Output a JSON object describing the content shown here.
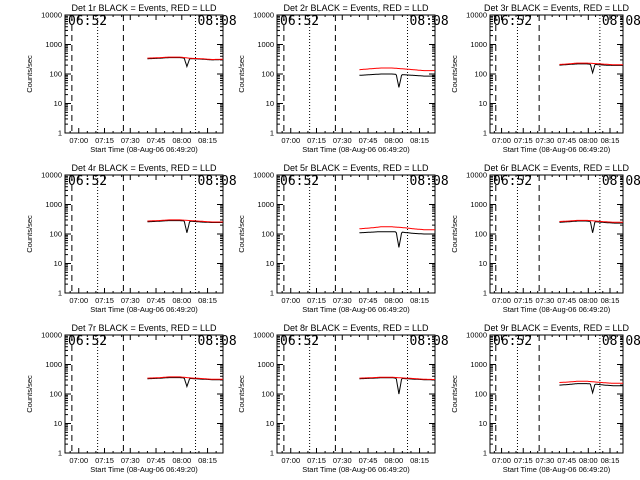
{
  "figure": {
    "background": "#ffffff",
    "axis_color": "#000000"
  },
  "chart_data": [
    {
      "type": "line",
      "title": "Det 1r BLACK = Events, RED = LLD",
      "xlabel": "Start Time (08-Aug-06 06:49:20)",
      "ylabel": "Counts/sec",
      "yscale": "log",
      "ylim": [
        1,
        10000
      ],
      "xlim": [
        "06:52",
        "08:24"
      ],
      "x_ticks": [
        "07:00",
        "07:15",
        "07:30",
        "07:45",
        "08:00",
        "08:15"
      ],
      "y_ticks": [
        "1",
        "10",
        "100",
        "1000",
        "10000"
      ],
      "markers": {
        "S": "06:52",
        "E": "08:08"
      },
      "dashed_lines": [
        "06:56",
        "07:26"
      ],
      "dotted_lines": [
        "07:11",
        "08:08"
      ],
      "data_start": "07:40",
      "data_end": "08:24",
      "series": [
        {
          "color": "#000000",
          "values": [
            330,
            340,
            360,
            360,
            330,
            320,
            300,
            310
          ]
        },
        {
          "color": "#ff0000",
          "values": [
            345,
            355,
            375,
            375,
            340,
            330,
            310,
            315
          ]
        }
      ],
      "dip": {
        "x": "08:03",
        "value": 180
      }
    },
    {
      "type": "line",
      "title": "Det 2r BLACK = Events, RED = LLD",
      "xlabel": "Start Time (08-Aug-06 06:49:20)",
      "ylabel": "Counts/sec",
      "yscale": "log",
      "ylim": [
        1,
        10000
      ],
      "xlim": [
        "06:52",
        "08:24"
      ],
      "x_ticks": [
        "07:00",
        "07:15",
        "07:30",
        "07:45",
        "08:00",
        "08:15"
      ],
      "y_ticks": [
        "1",
        "10",
        "100",
        "1000",
        "10000"
      ],
      "markers": {
        "S": "06:52",
        "E": "08:08"
      },
      "dashed_lines": [
        "06:56",
        "07:26"
      ],
      "dotted_lines": [
        "07:11",
        "08:08"
      ],
      "data_start": "07:40",
      "data_end": "08:24",
      "series": [
        {
          "color": "#000000",
          "values": [
            90,
            95,
            100,
            100,
            95,
            90,
            85,
            85
          ]
        },
        {
          "color": "#ff0000",
          "values": [
            140,
            150,
            160,
            160,
            150,
            140,
            130,
            130
          ]
        }
      ],
      "dip": {
        "x": "08:03",
        "value": 35
      }
    },
    {
      "type": "line",
      "title": "Det 3r BLACK = Events, RED = LLD",
      "xlabel": "Start Time (08-Aug-06 06:49:20)",
      "ylabel": "Counts/sec",
      "yscale": "log",
      "ylim": [
        1,
        10000
      ],
      "xlim": [
        "06:52",
        "08:24"
      ],
      "x_ticks": [
        "07:00",
        "07:15",
        "07:30",
        "07:45",
        "08:00",
        "08:15"
      ],
      "y_ticks": [
        "1",
        "10",
        "100",
        "1000",
        "10000"
      ],
      "markers": {
        "S": "06:52",
        "E": "08:08"
      },
      "dashed_lines": [
        "06:56",
        "07:26"
      ],
      "dotted_lines": [
        "07:11",
        "08:08"
      ],
      "data_start": "07:40",
      "data_end": "08:24",
      "series": [
        {
          "color": "#000000",
          "values": [
            200,
            210,
            220,
            220,
            210,
            200,
            195,
            195
          ]
        },
        {
          "color": "#ff0000",
          "values": [
            210,
            220,
            235,
            235,
            225,
            215,
            205,
            205
          ]
        }
      ],
      "dip": {
        "x": "08:03",
        "value": 110
      }
    },
    {
      "type": "line",
      "title": "Det 4r BLACK = Events, RED = LLD",
      "xlabel": "Start Time (08-Aug-06 06:49:20)",
      "ylabel": "Counts/sec",
      "yscale": "log",
      "ylim": [
        1,
        10000
      ],
      "xlim": [
        "06:52",
        "08:24"
      ],
      "x_ticks": [
        "07:00",
        "07:15",
        "07:30",
        "07:45",
        "08:00",
        "08:15"
      ],
      "y_ticks": [
        "1",
        "10",
        "100",
        "1000",
        "10000"
      ],
      "markers": {
        "S": "06:52",
        "E": "08:08"
      },
      "dashed_lines": [
        "06:56",
        "07:26"
      ],
      "dotted_lines": [
        "07:11",
        "08:08"
      ],
      "data_start": "07:40",
      "data_end": "08:24",
      "series": [
        {
          "color": "#000000",
          "values": [
            260,
            270,
            285,
            285,
            270,
            255,
            245,
            245
          ]
        },
        {
          "color": "#ff0000",
          "values": [
            275,
            285,
            300,
            300,
            285,
            270,
            255,
            255
          ]
        }
      ],
      "dip": {
        "x": "08:03",
        "value": 110
      }
    },
    {
      "type": "line",
      "title": "Det 5r BLACK = Events, RED = LLD",
      "xlabel": "Start Time (08-Aug-06 06:49:20)",
      "ylabel": "Counts/sec",
      "yscale": "log",
      "ylim": [
        1,
        10000
      ],
      "xlim": [
        "06:52",
        "08:24"
      ],
      "x_ticks": [
        "07:00",
        "07:15",
        "07:30",
        "07:45",
        "08:00",
        "08:15"
      ],
      "y_ticks": [
        "1",
        "10",
        "100",
        "1000",
        "10000"
      ],
      "markers": {
        "S": "06:52",
        "E": "08:08"
      },
      "dashed_lines": [
        "06:56",
        "07:26"
      ],
      "dotted_lines": [
        "07:11",
        "08:08"
      ],
      "data_start": "07:40",
      "data_end": "08:24",
      "series": [
        {
          "color": "#000000",
          "values": [
            110,
            115,
            120,
            120,
            115,
            105,
            100,
            100
          ]
        },
        {
          "color": "#ff0000",
          "values": [
            150,
            160,
            175,
            175,
            165,
            150,
            140,
            140
          ]
        }
      ],
      "dip": {
        "x": "08:03",
        "value": 35
      }
    },
    {
      "type": "line",
      "title": "Det 6r BLACK = Events, RED = LLD",
      "xlabel": "Start Time (08-Aug-06 06:49:20)",
      "ylabel": "Counts/sec",
      "yscale": "log",
      "ylim": [
        1,
        10000
      ],
      "xlim": [
        "06:52",
        "08:24"
      ],
      "x_ticks": [
        "07:00",
        "07:15",
        "07:30",
        "07:45",
        "08:00",
        "08:15"
      ],
      "y_ticks": [
        "1",
        "10",
        "100",
        "1000",
        "10000"
      ],
      "markers": {
        "S": "06:52",
        "E": "08:08"
      },
      "dashed_lines": [
        "06:56",
        "07:26"
      ],
      "dotted_lines": [
        "07:11",
        "08:08"
      ],
      "data_start": "07:40",
      "data_end": "08:24",
      "series": [
        {
          "color": "#000000",
          "values": [
            250,
            260,
            275,
            275,
            260,
            245,
            235,
            235
          ]
        },
        {
          "color": "#ff0000",
          "values": [
            265,
            275,
            290,
            290,
            275,
            260,
            250,
            250
          ]
        }
      ],
      "dip": {
        "x": "08:03",
        "value": 110
      }
    },
    {
      "type": "line",
      "title": "Det 7r BLACK = Events, RED = LLD",
      "xlabel": "Start Time (08-Aug-06 06:49:20)",
      "ylabel": "Counts/sec",
      "yscale": "log",
      "ylim": [
        1,
        10000
      ],
      "xlim": [
        "06:52",
        "08:24"
      ],
      "x_ticks": [
        "07:00",
        "07:15",
        "07:30",
        "07:45",
        "08:00",
        "08:15"
      ],
      "y_ticks": [
        "1",
        "10",
        "100",
        "1000",
        "10000"
      ],
      "markers": {
        "S": "06:52",
        "E": "08:08"
      },
      "dashed_lines": [
        "06:56",
        "07:26"
      ],
      "dotted_lines": [
        "07:11",
        "08:08"
      ],
      "data_start": "07:40",
      "data_end": "08:24",
      "series": [
        {
          "color": "#000000",
          "values": [
            330,
            340,
            360,
            360,
            335,
            320,
            305,
            305
          ]
        },
        {
          "color": "#ff0000",
          "values": [
            345,
            355,
            380,
            380,
            350,
            335,
            315,
            315
          ]
        }
      ],
      "dip": {
        "x": "08:03",
        "value": 180
      }
    },
    {
      "type": "line",
      "title": "Det 8r BLACK = Events, RED = LLD",
      "xlabel": "Start Time (08-Aug-06 06:49:20)",
      "ylabel": "Counts/sec",
      "yscale": "log",
      "ylim": [
        1,
        10000
      ],
      "xlim": [
        "06:52",
        "08:24"
      ],
      "x_ticks": [
        "07:00",
        "07:15",
        "07:30",
        "07:45",
        "08:00",
        "08:15"
      ],
      "y_ticks": [
        "1",
        "10",
        "100",
        "1000",
        "10000"
      ],
      "markers": {
        "S": "06:52",
        "E": "08:08"
      },
      "dashed_lines": [
        "06:56",
        "07:26"
      ],
      "dotted_lines": [
        "07:11",
        "08:08"
      ],
      "data_start": "07:40",
      "data_end": "08:24",
      "series": [
        {
          "color": "#000000",
          "values": [
            330,
            340,
            355,
            355,
            335,
            320,
            305,
            300
          ]
        },
        {
          "color": "#ff0000",
          "values": [
            345,
            355,
            370,
            370,
            350,
            335,
            315,
            310
          ]
        }
      ],
      "dip": {
        "x": "08:03",
        "value": 100
      }
    },
    {
      "type": "line",
      "title": "Det 9r BLACK = Events, RED = LLD",
      "xlabel": "Start Time (08-Aug-06 06:49:20)",
      "ylabel": "Counts/sec",
      "yscale": "log",
      "ylim": [
        1,
        10000
      ],
      "xlim": [
        "06:52",
        "08:24"
      ],
      "x_ticks": [
        "07:00",
        "07:15",
        "07:30",
        "07:45",
        "08:00",
        "08:15"
      ],
      "y_ticks": [
        "1",
        "10",
        "100",
        "1000",
        "10000"
      ],
      "markers": {
        "S": "06:52",
        "E": "08:08"
      },
      "dashed_lines": [
        "06:56",
        "07:26"
      ],
      "dotted_lines": [
        "07:11",
        "08:08"
      ],
      "data_start": "07:40",
      "data_end": "08:24",
      "series": [
        {
          "color": "#000000",
          "values": [
            200,
            210,
            225,
            225,
            215,
            200,
            190,
            190
          ]
        },
        {
          "color": "#ff0000",
          "values": [
            245,
            255,
            270,
            270,
            255,
            240,
            230,
            230
          ]
        }
      ],
      "dip": {
        "x": "08:03",
        "value": 110
      }
    }
  ]
}
